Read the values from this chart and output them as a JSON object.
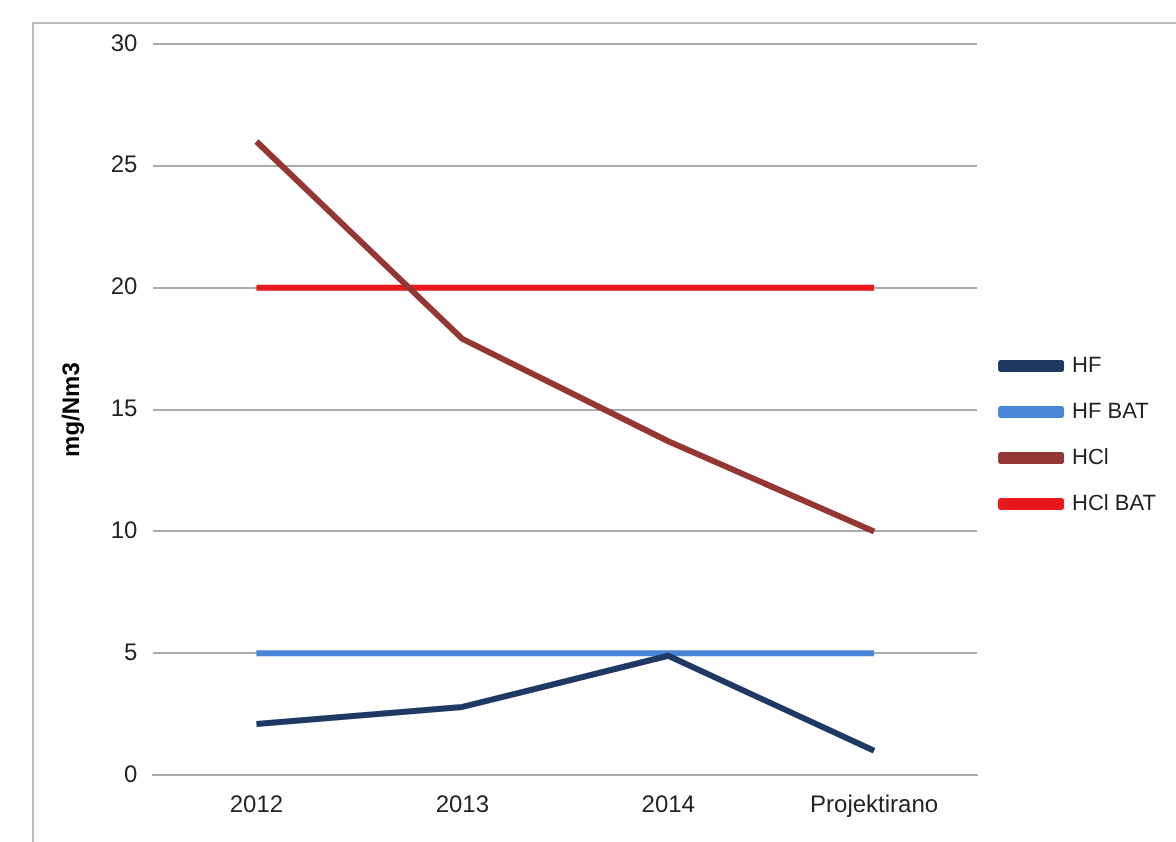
{
  "chart_data": {
    "type": "line",
    "ylabel": "mg/Nm3",
    "categories": [
      "2012",
      "2013",
      "2014",
      "Projektirano"
    ],
    "series": [
      {
        "name": "HF",
        "color": "#1f3864",
        "values": [
          2.1,
          2.8,
          4.9,
          1.0
        ]
      },
      {
        "name": "HF BAT",
        "color": "#4a86d8",
        "values": [
          5,
          5,
          5,
          5
        ]
      },
      {
        "name": "HCl",
        "color": "#943634",
        "values": [
          26,
          17.9,
          13.7,
          10
        ]
      },
      {
        "name": "HCl BAT",
        "color": "#e8191c",
        "values": [
          20,
          20,
          20,
          20
        ]
      }
    ],
    "ylim": [
      0,
      30
    ],
    "yticks": [
      0,
      5,
      10,
      15,
      20,
      25,
      30
    ],
    "grid": "y",
    "legend": "right",
    "marker": "none",
    "line_style": "solid"
  }
}
